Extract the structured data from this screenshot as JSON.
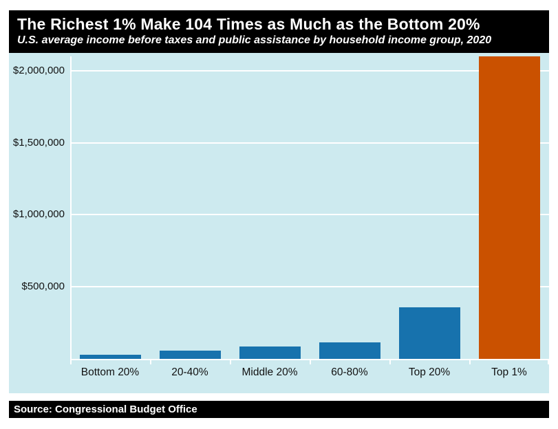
{
  "header": {
    "title": "The Richest 1% Make 104 Times as Much as the Bottom 20%",
    "subtitle": "U.S. average income before taxes and public assistance by household income group, 2020"
  },
  "footer": {
    "source": "Source: Congressional Budget Office"
  },
  "colors": {
    "panel_bg": "#000000",
    "panel_text": "#ffffff",
    "plot_bg": "#cdeaef",
    "grid": "#ffffff",
    "bar_blue": "#1772ad",
    "bar_highlight_orange": "#ca5100",
    "axis_text": "#111111"
  },
  "chart_data": {
    "type": "bar",
    "title": "The Richest 1% Make 104 Times as Much as the Bottom 20%",
    "subtitle": "U.S. average income before taxes and public assistance by household income group, 2020",
    "source": "Source: Congressional Budget Office",
    "categories": [
      "Bottom 20%",
      "20-40%",
      "Middle 20%",
      "60-80%",
      "Top 20%",
      "Top 1%"
    ],
    "values": [
      20000,
      57000,
      86000,
      115000,
      358000,
      2100000
    ],
    "bar_colors": [
      "#1772ad",
      "#1772ad",
      "#1772ad",
      "#1772ad",
      "#1772ad",
      "#ca5100"
    ],
    "highlight_category": "Top 1%",
    "xlabel": "",
    "ylabel": "",
    "ylim": [
      0,
      2100000
    ],
    "yticks": [
      {
        "value": 500000,
        "label": "$500,000"
      },
      {
        "value": 1000000,
        "label": "$1,000,000"
      },
      {
        "value": 1500000,
        "label": "$1,500,000"
      },
      {
        "value": 2000000,
        "label": "$2,000,000"
      }
    ],
    "grid": true,
    "legend": "none"
  }
}
